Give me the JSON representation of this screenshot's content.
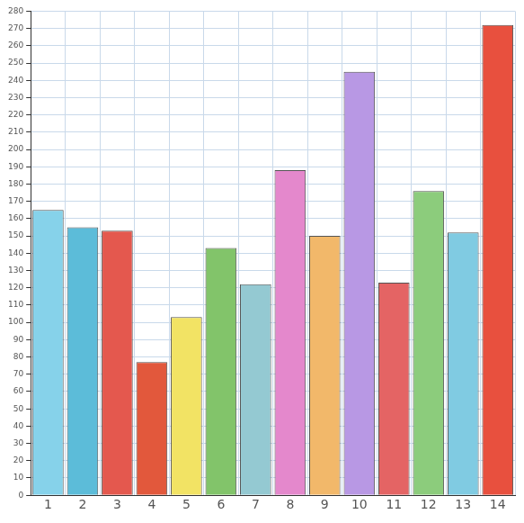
{
  "chart_data": {
    "type": "bar",
    "categories": [
      "1",
      "2",
      "3",
      "4",
      "5",
      "6",
      "7",
      "8",
      "9",
      "10",
      "11",
      "12",
      "13",
      "14"
    ],
    "values": [
      165,
      155,
      153,
      77,
      103,
      143,
      122,
      188,
      150,
      245,
      123,
      176,
      152,
      272
    ],
    "colors": [
      "#86d2ea",
      "#5cbcd9",
      "#e4584e",
      "#e2583c",
      "#f2e364",
      "#82c46a",
      "#94c9d2",
      "#e488cc",
      "#f2b86a",
      "#b898e4",
      "#e46464",
      "#8ccc7c",
      "#80cbe2",
      "#e8503e"
    ],
    "ylim": [
      0,
      280
    ],
    "yticks": [
      0,
      10,
      20,
      30,
      40,
      50,
      60,
      70,
      80,
      90,
      100,
      110,
      120,
      130,
      140,
      150,
      160,
      170,
      180,
      190,
      200,
      210,
      220,
      230,
      240,
      250,
      260,
      270,
      280
    ],
    "grid": true
  }
}
